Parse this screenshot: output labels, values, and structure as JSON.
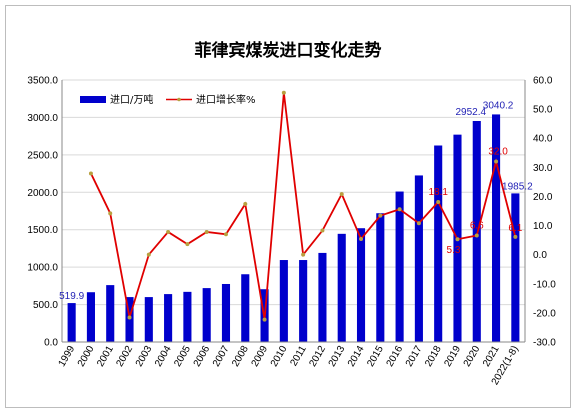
{
  "chart_data": {
    "type": "bar",
    "title": "菲律宾煤炭进口变化走势",
    "categories": [
      "1999",
      "2000",
      "2001",
      "2002",
      "2003",
      "2004",
      "2005",
      "2006",
      "2007",
      "2008",
      "2009",
      "2010",
      "2011",
      "2012",
      "2013",
      "2014",
      "2015",
      "2016",
      "2017",
      "2018",
      "2019",
      "2020",
      "2021",
      "2022(1-8)"
    ],
    "left_axis": {
      "min": 0,
      "max": 3500,
      "step": 500,
      "ticks": [
        "0.0",
        "500.0",
        "1000.0",
        "1500.0",
        "2000.0",
        "2500.0",
        "3000.0",
        "3500.0"
      ]
    },
    "right_axis": {
      "min": -30,
      "max": 60,
      "step": 10,
      "ticks": [
        "-30.0",
        "-20.0",
        "-10.0",
        "0.0",
        "10.0",
        "20.0",
        "30.0",
        "40.0",
        "50.0",
        "60.0"
      ]
    },
    "grid": true,
    "legend_position": "top-left",
    "series": [
      {
        "name": "进口/万吨",
        "type": "bar",
        "axis": "left",
        "color": "#0000cc",
        "values": [
          519.9,
          665,
          760,
          600,
          600,
          640,
          670,
          720,
          775,
          905,
          705,
          1095,
          1095,
          1190,
          1445,
          1520,
          1720,
          2010,
          2225,
          2625,
          2770,
          2952.4,
          3040.2,
          1985.2
        ],
        "labels": [
          {
            "index": 0,
            "text": "519.9"
          },
          {
            "index": 21,
            "text": "2952.4"
          },
          {
            "index": 22,
            "text": "3040.2"
          },
          {
            "index": 23,
            "text": "1985.2"
          }
        ]
      },
      {
        "name": "进口增长率%",
        "type": "line",
        "axis": "right",
        "color": "#e00000",
        "marker_color": "#b8a040",
        "values": [
          null,
          27.9,
          14.2,
          -21.6,
          0,
          7.8,
          3.6,
          7.8,
          7.0,
          17.4,
          -22.3,
          55.6,
          0,
          8.3,
          20.8,
          5.4,
          13.4,
          15.6,
          10.8,
          18.1,
          5.3,
          6.6,
          32.0,
          6.1
        ],
        "labels": [
          {
            "index": 19,
            "text": "18.1"
          },
          {
            "index": 20,
            "text": "5.3"
          },
          {
            "index": 21,
            "text": "6.6"
          },
          {
            "index": 22,
            "text": "32.0"
          },
          {
            "index": 23,
            "text": "6.1"
          }
        ]
      }
    ]
  }
}
